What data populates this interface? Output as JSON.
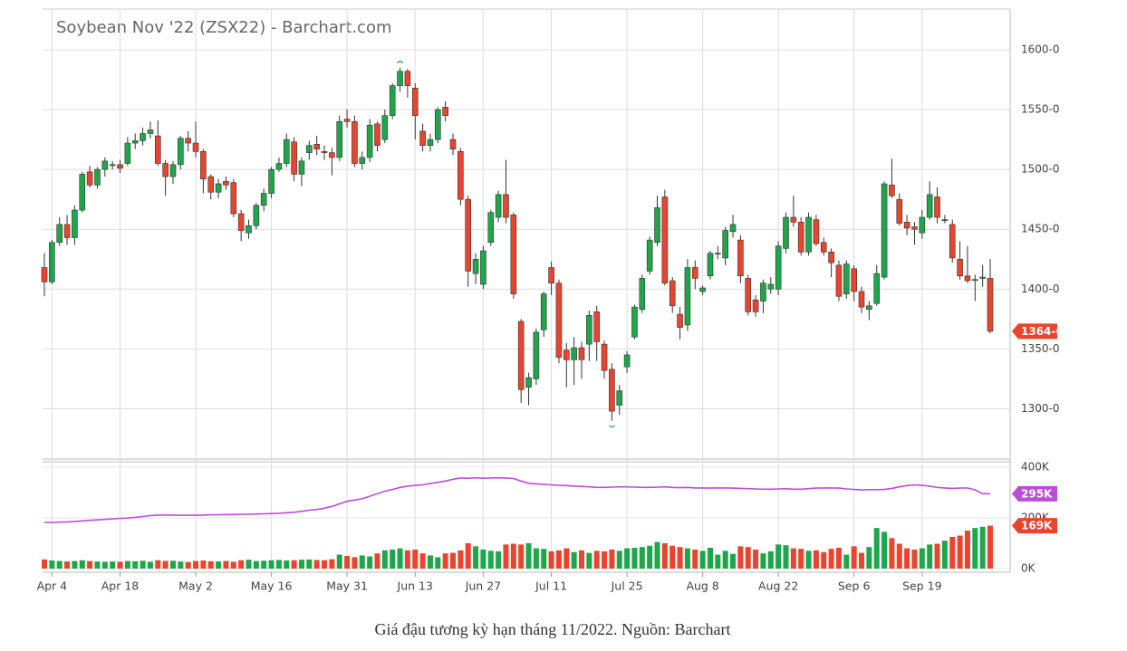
{
  "chart_data": {
    "type": "candlestick",
    "title": "Soybean Nov '22 (ZSX22) - Barchart.com",
    "caption": "Giá đậu tương kỳ hạn tháng 11/2022. Nguồn: Barchart",
    "categories": [
      null,
      "Apr 4",
      null,
      null,
      null,
      null,
      null,
      null,
      null,
      null,
      "Apr 18",
      null,
      null,
      null,
      null,
      null,
      null,
      null,
      null,
      null,
      "May 2",
      null,
      null,
      null,
      null,
      null,
      null,
      null,
      null,
      null,
      "May 16",
      null,
      null,
      null,
      null,
      null,
      null,
      null,
      null,
      null,
      "May 31",
      null,
      null,
      null,
      null,
      null,
      null,
      null,
      null,
      "Jun 13",
      null,
      null,
      null,
      null,
      null,
      null,
      null,
      null,
      "Jun 27",
      null,
      null,
      null,
      null,
      null,
      null,
      null,
      null,
      "Jul 11",
      null,
      null,
      null,
      null,
      null,
      null,
      null,
      null,
      null,
      "Jul 25",
      null,
      null,
      null,
      null,
      null,
      null,
      null,
      null,
      null,
      "Aug 8",
      null,
      null,
      null,
      null,
      null,
      null,
      null,
      null,
      null,
      "Aug 22",
      null,
      null,
      null,
      null,
      null,
      null,
      null,
      null,
      null,
      "Sep 6",
      null,
      null,
      null,
      null,
      null,
      null,
      null,
      null,
      "Sep 19",
      null,
      null,
      null,
      null,
      null,
      null,
      null,
      null,
      null
    ],
    "ohlc": [
      [
        1418,
        1430,
        1394,
        1406
      ],
      [
        1406,
        1441,
        1404,
        1439
      ],
      [
        1439,
        1460,
        1436,
        1454
      ],
      [
        1454,
        1462,
        1437,
        1443
      ],
      [
        1443,
        1470,
        1437,
        1466
      ],
      [
        1466,
        1498,
        1464,
        1496
      ],
      [
        1498,
        1503,
        1485,
        1487
      ],
      [
        1487,
        1502,
        1484,
        1500
      ],
      [
        1500,
        1510,
        1494,
        1507
      ],
      [
        1504,
        1507,
        1500,
        1504
      ],
      [
        1504,
        1508,
        1497,
        1501
      ],
      [
        1505,
        1527,
        1503,
        1522
      ],
      [
        1522,
        1530,
        1517,
        1524
      ],
      [
        1524,
        1535,
        1520,
        1530
      ],
      [
        1530,
        1540,
        1526,
        1533
      ],
      [
        1528,
        1541,
        1503,
        1505
      ],
      [
        1505,
        1508,
        1478,
        1494
      ],
      [
        1494,
        1507,
        1488,
        1504
      ],
      [
        1504,
        1528,
        1500,
        1526
      ],
      [
        1526,
        1532,
        1515,
        1522
      ],
      [
        1522,
        1540,
        1510,
        1515
      ],
      [
        1515,
        1517,
        1480,
        1492
      ],
      [
        1494,
        1496,
        1475,
        1481
      ],
      [
        1481,
        1492,
        1476,
        1488
      ],
      [
        1490,
        1494,
        1483,
        1487
      ],
      [
        1489,
        1492,
        1460,
        1463
      ],
      [
        1463,
        1466,
        1440,
        1449
      ],
      [
        1447,
        1458,
        1442,
        1453
      ],
      [
        1453,
        1472,
        1450,
        1470
      ],
      [
        1470,
        1484,
        1465,
        1480
      ],
      [
        1480,
        1502,
        1476,
        1500
      ],
      [
        1500,
        1510,
        1498,
        1505
      ],
      [
        1505,
        1530,
        1502,
        1525
      ],
      [
        1523,
        1527,
        1490,
        1496
      ],
      [
        1496,
        1510,
        1486,
        1507
      ],
      [
        1514,
        1524,
        1508,
        1520
      ],
      [
        1521,
        1528,
        1512,
        1517
      ],
      [
        1515,
        1520,
        1508,
        1514
      ],
      [
        1514,
        1518,
        1495,
        1510
      ],
      [
        1510,
        1545,
        1507,
        1540
      ],
      [
        1542,
        1550,
        1535,
        1540
      ],
      [
        1540,
        1545,
        1502,
        1505
      ],
      [
        1505,
        1515,
        1500,
        1510
      ],
      [
        1510,
        1542,
        1506,
        1537
      ],
      [
        1538,
        1540,
        1515,
        1520
      ],
      [
        1525,
        1550,
        1522,
        1545
      ],
      [
        1545,
        1572,
        1542,
        1570
      ],
      [
        1570,
        1585,
        1565,
        1582
      ],
      [
        1582,
        1584,
        1560,
        1570
      ],
      [
        1568,
        1572,
        1525,
        1545
      ],
      [
        1532,
        1538,
        1515,
        1520
      ],
      [
        1520,
        1530,
        1515,
        1525
      ],
      [
        1525,
        1552,
        1522,
        1550
      ],
      [
        1552,
        1557,
        1540,
        1545
      ],
      [
        1525,
        1530,
        1512,
        1517
      ],
      [
        1515,
        1518,
        1470,
        1475
      ],
      [
        1475,
        1478,
        1402,
        1415
      ],
      [
        1413,
        1430,
        1404,
        1425
      ],
      [
        1404,
        1436,
        1400,
        1432
      ],
      [
        1439,
        1466,
        1436,
        1464
      ],
      [
        1460,
        1482,
        1456,
        1479
      ],
      [
        1479,
        1508,
        1455,
        1460
      ],
      [
        1462,
        1464,
        1392,
        1396
      ],
      [
        1373,
        1375,
        1305,
        1316
      ],
      [
        1318,
        1330,
        1303,
        1326
      ],
      [
        1325,
        1367,
        1320,
        1364
      ],
      [
        1366,
        1398,
        1360,
        1396
      ],
      [
        1418,
        1423,
        1395,
        1405
      ],
      [
        1405,
        1408,
        1338,
        1343
      ],
      [
        1349,
        1355,
        1318,
        1341
      ],
      [
        1341,
        1360,
        1320,
        1351
      ],
      [
        1351,
        1356,
        1325,
        1341
      ],
      [
        1354,
        1382,
        1340,
        1378
      ],
      [
        1381,
        1386,
        1340,
        1356
      ],
      [
        1354,
        1357,
        1325,
        1332
      ],
      [
        1333,
        1338,
        1290,
        1298
      ],
      [
        1303,
        1320,
        1295,
        1315
      ],
      [
        1335,
        1348,
        1330,
        1345
      ],
      [
        1360,
        1387,
        1358,
        1385
      ],
      [
        1383,
        1412,
        1380,
        1409
      ],
      [
        1415,
        1444,
        1412,
        1441
      ],
      [
        1439,
        1478,
        1436,
        1468
      ],
      [
        1477,
        1483,
        1403,
        1405
      ],
      [
        1407,
        1410,
        1380,
        1386
      ],
      [
        1379,
        1385,
        1358,
        1368
      ],
      [
        1370,
        1425,
        1365,
        1418
      ],
      [
        1418,
        1424,
        1400,
        1409
      ],
      [
        1398,
        1403,
        1395,
        1401
      ],
      [
        1411,
        1432,
        1408,
        1430
      ],
      [
        1430,
        1436,
        1425,
        1430
      ],
      [
        1426,
        1452,
        1420,
        1449
      ],
      [
        1448,
        1462,
        1443,
        1454
      ],
      [
        1441,
        1445,
        1405,
        1411
      ],
      [
        1409,
        1412,
        1378,
        1381
      ],
      [
        1391,
        1395,
        1377,
        1381
      ],
      [
        1390,
        1408,
        1380,
        1405
      ],
      [
        1400,
        1410,
        1396,
        1404
      ],
      [
        1400,
        1440,
        1395,
        1436
      ],
      [
        1434,
        1464,
        1430,
        1460
      ],
      [
        1460,
        1478,
        1452,
        1456
      ],
      [
        1456,
        1460,
        1428,
        1431
      ],
      [
        1431,
        1464,
        1428,
        1460
      ],
      [
        1458,
        1462,
        1436,
        1438
      ],
      [
        1439,
        1443,
        1428,
        1431
      ],
      [
        1431,
        1434,
        1410,
        1422
      ],
      [
        1420,
        1424,
        1390,
        1394
      ],
      [
        1396,
        1424,
        1392,
        1421
      ],
      [
        1417,
        1420,
        1390,
        1398
      ],
      [
        1398,
        1402,
        1380,
        1385
      ],
      [
        1383,
        1390,
        1374,
        1386
      ],
      [
        1388,
        1420,
        1386,
        1413
      ],
      [
        1410,
        1490,
        1408,
        1488
      ],
      [
        1487,
        1509,
        1476,
        1478
      ],
      [
        1475,
        1480,
        1453,
        1455
      ],
      [
        1456,
        1462,
        1445,
        1451
      ],
      [
        1452,
        1456,
        1437,
        1450
      ],
      [
        1447,
        1466,
        1442,
        1460
      ],
      [
        1460,
        1490,
        1458,
        1479
      ],
      [
        1477,
        1485,
        1455,
        1460
      ],
      [
        1458,
        1462,
        1455,
        1458
      ],
      [
        1454,
        1458,
        1422,
        1426
      ],
      [
        1425,
        1440,
        1408,
        1411
      ],
      [
        1411,
        1436,
        1405,
        1407
      ],
      [
        1408,
        1412,
        1390,
        1408
      ],
      [
        1409,
        1420,
        1402,
        1410
      ],
      [
        1409,
        1425,
        1363,
        1364.75
      ]
    ],
    "up_color": "#1fa64a",
    "down_color": "#e8452f",
    "ylim": [
      1258,
      1634
    ],
    "yticks": [
      {
        "value": 1300,
        "label": "1300-0"
      },
      {
        "value": 1350,
        "label": "1350-0"
      },
      {
        "value": 1400,
        "label": "1400-0"
      },
      {
        "value": 1450,
        "label": "1450-0"
      },
      {
        "value": 1500,
        "label": "1500-0"
      },
      {
        "value": 1550,
        "label": "1550-0"
      },
      {
        "value": 1600,
        "label": "1600-0"
      }
    ],
    "last_price": {
      "value": 1364.75,
      "label": "1364-6"
    },
    "volume": [
      36000,
      32000,
      30000,
      28000,
      30000,
      33000,
      30000,
      28000,
      27000,
      28000,
      27000,
      30000,
      29000,
      31000,
      27000,
      33000,
      30000,
      31000,
      28000,
      26000,
      30000,
      32000,
      29000,
      28000,
      30000,
      27000,
      33000,
      35000,
      30000,
      31000,
      33000,
      34000,
      32000,
      33000,
      35000,
      36000,
      34000,
      33000,
      37000,
      55000,
      50000,
      45000,
      52000,
      48000,
      60000,
      72000,
      75000,
      80000,
      72000,
      75000,
      60000,
      52000,
      45000,
      60000,
      62000,
      72000,
      100000,
      88000,
      75000,
      70000,
      68000,
      95000,
      98000,
      95000,
      100000,
      80000,
      78000,
      68000,
      72000,
      80000,
      65000,
      72000,
      62000,
      70000,
      68000,
      75000,
      70000,
      80000,
      82000,
      85000,
      90000,
      105000,
      100000,
      90000,
      85000,
      80000,
      75000,
      70000,
      82000,
      55000,
      70000,
      58000,
      88000,
      85000,
      75000,
      60000,
      68000,
      95000,
      92000,
      80000,
      78000,
      70000,
      72000,
      65000,
      78000,
      82000,
      55000,
      88000,
      62000,
      85000,
      160000,
      145000,
      120000,
      98000,
      80000,
      75000,
      80000,
      95000,
      98000,
      110000,
      125000,
      130000,
      150000,
      160000,
      165000,
      169000
    ],
    "open_interest": [
      182000,
      182000,
      183000,
      184000,
      186000,
      188000,
      190000,
      192000,
      194000,
      196000,
      198000,
      199000,
      202000,
      205000,
      209000,
      211000,
      211000,
      211000,
      210000,
      210000,
      210000,
      211000,
      212000,
      212000,
      213000,
      213000,
      214000,
      214000,
      215000,
      216000,
      217000,
      218000,
      220000,
      222000,
      226000,
      230000,
      233000,
      238000,
      245000,
      255000,
      265000,
      270000,
      275000,
      285000,
      295000,
      305000,
      312000,
      320000,
      325000,
      328000,
      330000,
      335000,
      340000,
      345000,
      352000,
      357000,
      356000,
      358000,
      356000,
      357000,
      358000,
      357000,
      355000,
      345000,
      336000,
      334000,
      332000,
      330000,
      328000,
      327000,
      325000,
      324000,
      322000,
      320000,
      320000,
      321000,
      322000,
      322000,
      321000,
      320000,
      320000,
      321000,
      322000,
      320000,
      319000,
      320000,
      318000,
      318000,
      317000,
      318000,
      318000,
      317000,
      316000,
      315000,
      314000,
      313000,
      313000,
      314000,
      315000,
      313000,
      313000,
      315000,
      317000,
      318000,
      318000,
      317000,
      314000,
      312000,
      310000,
      311000,
      311000,
      312000,
      316000,
      322000,
      327000,
      330000,
      328000,
      325000,
      320000,
      318000,
      316000,
      317000,
      318000,
      310000,
      295000,
      295000
    ],
    "open_interest_color": "#b94fd8",
    "y2lim": [
      0,
      421000
    ],
    "y2ticks": [
      {
        "value": 0,
        "label": "0K"
      },
      {
        "value": 200000,
        "label": "200K"
      },
      {
        "value": 400000,
        "label": "400K"
      }
    ],
    "last_open_interest": {
      "value": 295000,
      "label": "295K"
    },
    "last_volume": {
      "value": 169000,
      "label": "169K"
    },
    "grid": true
  }
}
